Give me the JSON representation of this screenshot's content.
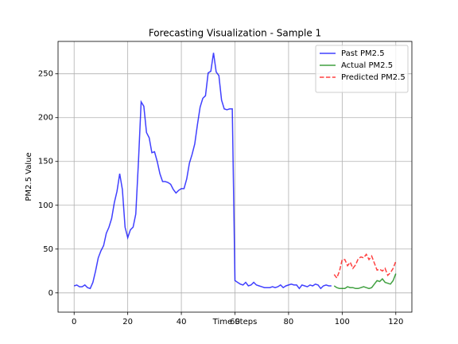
{
  "chart_data": {
    "type": "line",
    "title": "Forecasting Visualization - Sample 1",
    "x_label": "Time Steps",
    "y_label": "PM2.5 Value",
    "xlim": [
      -6,
      126
    ],
    "ylim": [
      -22,
      287
    ],
    "xticks": [
      0,
      20,
      40,
      60,
      80,
      100,
      120
    ],
    "yticks": [
      0,
      50,
      100,
      150,
      200,
      250
    ],
    "grid": true,
    "legend": "upper right",
    "series": [
      {
        "name": "Past PM2.5",
        "color": "#0000ff",
        "linestyle": "solid",
        "x": [
          0,
          1,
          2,
          3,
          4,
          5,
          6,
          7,
          8,
          9,
          10,
          11,
          12,
          13,
          14,
          15,
          16,
          17,
          18,
          19,
          20,
          21,
          22,
          23,
          24,
          25,
          26,
          27,
          28,
          29,
          30,
          31,
          32,
          33,
          34,
          35,
          36,
          37,
          38,
          39,
          40,
          41,
          42,
          43,
          44,
          45,
          46,
          47,
          48,
          49,
          50,
          51,
          52,
          53,
          54,
          55,
          56,
          57,
          58,
          59,
          60,
          61,
          62,
          63,
          64,
          65,
          66,
          67,
          68,
          69,
          70,
          71,
          72,
          73,
          74,
          75,
          76,
          77,
          78,
          79,
          80,
          81,
          82,
          83,
          84,
          85,
          86,
          87,
          88,
          89,
          90,
          91,
          92,
          93,
          94,
          95,
          96
        ],
        "values": [
          8,
          9,
          7,
          7,
          9,
          6,
          5,
          12,
          25,
          40,
          48,
          54,
          68,
          75,
          85,
          103,
          116,
          136,
          118,
          75,
          63,
          72,
          75,
          90,
          150,
          218,
          213,
          183,
          177,
          160,
          161,
          150,
          136,
          127,
          127,
          126,
          124,
          118,
          114,
          117,
          119,
          119,
          130,
          148,
          158,
          170,
          192,
          212,
          222,
          225,
          251,
          253,
          274,
          252,
          248,
          220,
          210,
          209,
          210,
          210,
          14,
          12,
          10,
          9,
          12,
          8,
          9,
          12,
          9,
          8,
          7,
          6,
          6,
          6,
          7,
          6,
          7,
          9,
          6,
          8,
          9,
          10,
          9,
          9,
          5,
          9,
          8,
          7,
          9,
          8,
          10,
          9,
          5,
          8,
          9,
          8,
          8
        ]
      },
      {
        "name": "Actual PM2.5",
        "color": "#008000",
        "linestyle": "solid",
        "x": [
          97,
          98,
          99,
          100,
          101,
          102,
          103,
          104,
          105,
          106,
          107,
          108,
          109,
          110,
          111,
          112,
          113,
          114,
          115,
          116,
          117,
          118,
          119,
          120
        ],
        "values": [
          8,
          6,
          5,
          5,
          5,
          7,
          6,
          6,
          5,
          5,
          6,
          7,
          6,
          5,
          6,
          10,
          14,
          13,
          16,
          12,
          11,
          10,
          14,
          22
        ]
      },
      {
        "name": "Predicted PM2.5",
        "color": "#ff0000",
        "linestyle": "dashed",
        "x": [
          97,
          98,
          99,
          100,
          101,
          102,
          103,
          104,
          105,
          106,
          107,
          108,
          109,
          110,
          111,
          112,
          113,
          114,
          115,
          116,
          117,
          118,
          119,
          120
        ],
        "values": [
          21,
          17,
          25,
          38,
          38,
          31,
          35,
          28,
          32,
          39,
          41,
          40,
          44,
          38,
          42,
          34,
          26,
          27,
          25,
          28,
          20,
          23,
          28,
          36
        ]
      }
    ]
  }
}
